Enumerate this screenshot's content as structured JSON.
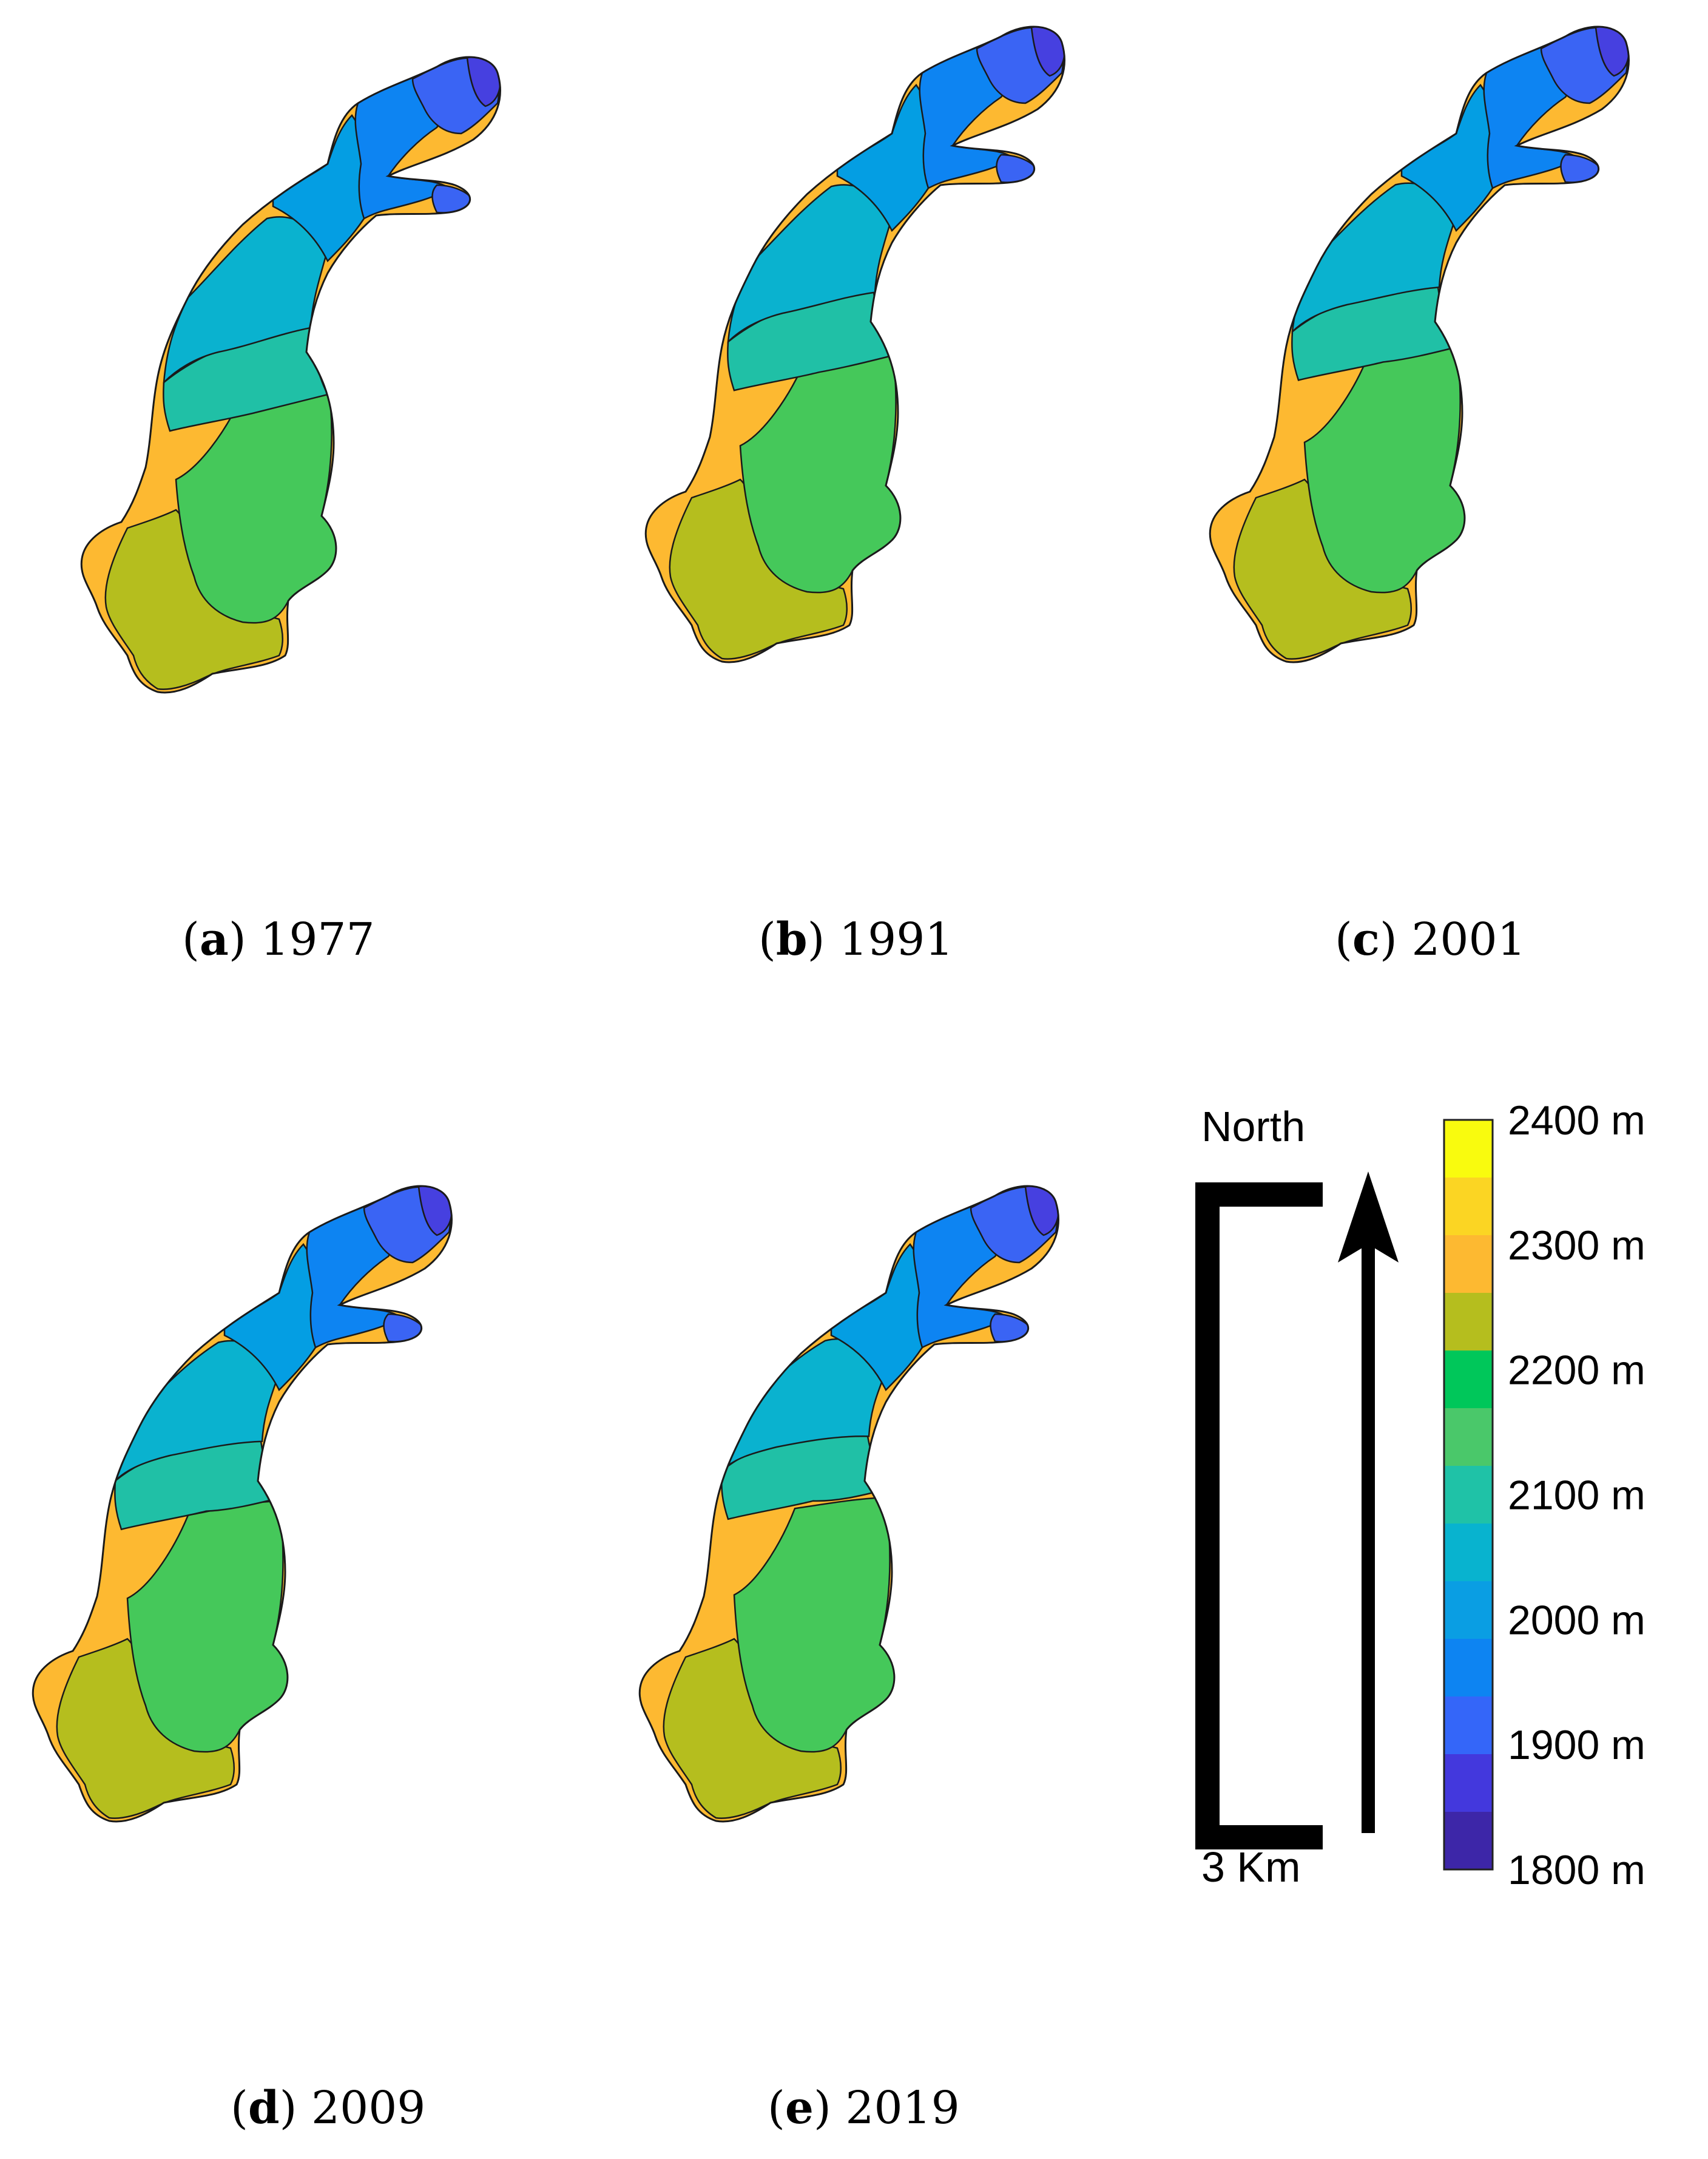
{
  "panels": [
    {
      "letter": "a",
      "year": "1977",
      "stage": 0
    },
    {
      "letter": "b",
      "year": "1991",
      "stage": 1
    },
    {
      "letter": "c",
      "year": "2001",
      "stage": 2
    },
    {
      "letter": "d",
      "year": "2009",
      "stage": 3
    },
    {
      "letter": "e",
      "year": "2019",
      "stage": 4
    }
  ],
  "north_arrow": {
    "label": "North"
  },
  "scale_bar": {
    "label": "3 Km"
  },
  "colorbar": {
    "tick_labels": [
      "2400 m",
      "2300 m",
      "2200 m",
      "2100 m",
      "2000 m",
      "1900 m",
      "1800 m"
    ],
    "range": [
      1800,
      2400
    ],
    "step": 50,
    "colors": [
      "#3d26a8",
      "#4338dd",
      "#3466f9",
      "#0d84f2",
      "#0a9ee3",
      "#08b3cf",
      "#1fc2a7",
      "#4ac86a",
      "#00c75a",
      "#b5be1e",
      "#fdb931",
      "#fbd523",
      "#f9fb0e"
    ]
  },
  "elevation_band_colors": {
    "1850": "#4640e0",
    "1900": "#3a64f4",
    "1950": "#0d84f2",
    "2000": "#049ee3",
    "2050": "#0ab2cf",
    "2100": "#20c0a6",
    "2150": "#45c85a",
    "2200": "#b5be1e",
    "2250": "#fdb931",
    "2300": "#fbd523"
  }
}
